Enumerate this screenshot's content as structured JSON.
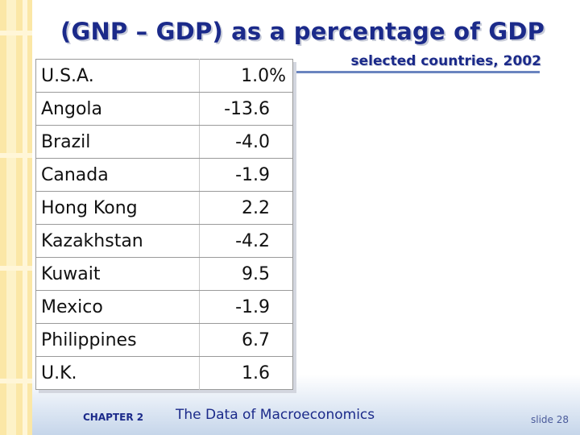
{
  "title": "(GNP – GDP) as a percentage of GDP",
  "subtitle": "selected countries, 2002",
  "table": {
    "rows": [
      {
        "country": "U.S.A.",
        "value": "1.0%"
      },
      {
        "country": "Angola",
        "value": "-13.6"
      },
      {
        "country": "Brazil",
        "value": "-4.0"
      },
      {
        "country": "Canada",
        "value": "-1.9"
      },
      {
        "country": "Hong Kong",
        "value": "2.2"
      },
      {
        "country": "Kazakhstan",
        "value": "-4.2"
      },
      {
        "country": "Kuwait",
        "value": "9.5"
      },
      {
        "country": "Mexico",
        "value": "-1.9"
      },
      {
        "country": "Philippines",
        "value": "6.7"
      },
      {
        "country": "U.K.",
        "value": "1.6"
      }
    ]
  },
  "footer": {
    "chapter": "CHAPTER 2",
    "book": "The Data of Macroeconomics",
    "slide": "slide 28"
  },
  "colors": {
    "title": "#1b2a8a",
    "accent_rule": "#6a84bf",
    "strip": "#fbe7a6"
  }
}
